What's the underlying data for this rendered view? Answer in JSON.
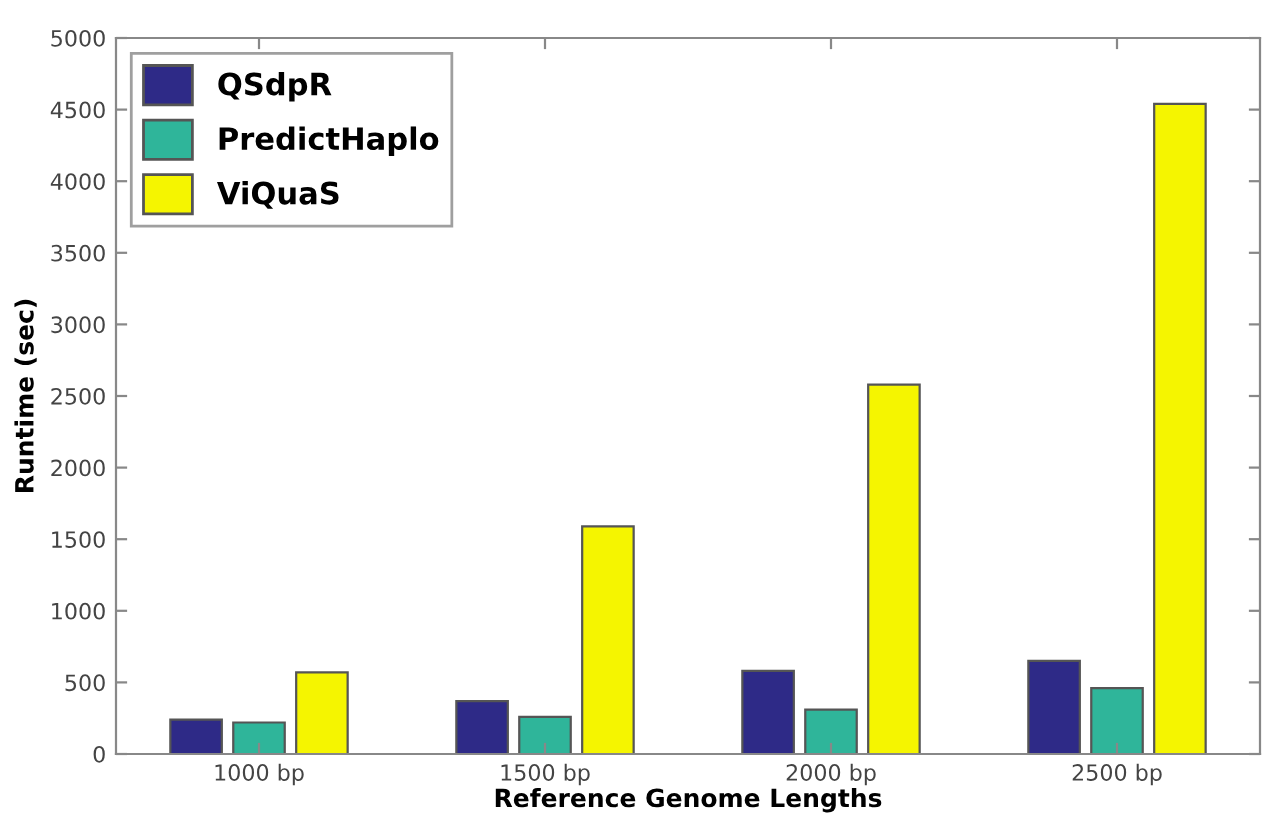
{
  "chart_data": {
    "type": "bar",
    "xlabel": "Reference Genome Lengths",
    "ylabel": "Runtime (sec)",
    "categories": [
      "1000 bp",
      "1500 bp",
      "2000 bp",
      "2500 bp"
    ],
    "series": [
      {
        "name": "QSdpR",
        "color": "#2e2a87",
        "values": [
          240,
          370,
          580,
          650
        ]
      },
      {
        "name": "PredictHaplo",
        "color": "#2fb59a",
        "values": [
          220,
          260,
          310,
          460
        ]
      },
      {
        "name": "ViQuaS",
        "color": "#f5f500",
        "values": [
          570,
          1590,
          2580,
          4540
        ]
      }
    ],
    "ylim": [
      0,
      5000
    ],
    "yticks": [
      0,
      500,
      1000,
      1500,
      2000,
      2500,
      3000,
      3500,
      4000,
      4500,
      5000
    ],
    "grid": false,
    "legend": "top left"
  }
}
